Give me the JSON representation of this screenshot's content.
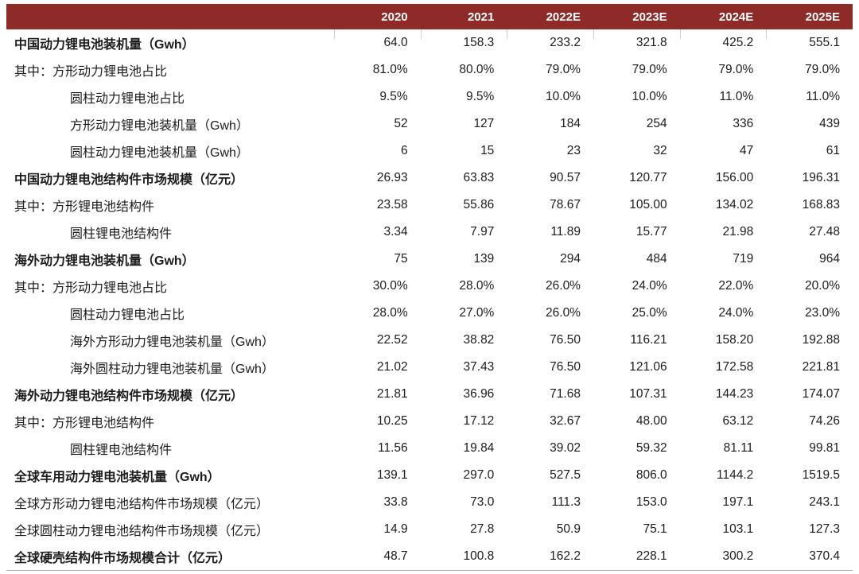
{
  "colors": {
    "header_bg": "#8E2A28",
    "header_text": "#FFFFFF",
    "body_text": "#1C1C1C"
  },
  "table": {
    "columns": [
      "2020",
      "2021",
      "2022E",
      "2023E",
      "2024E",
      "2025E"
    ],
    "rows": [
      {
        "label": "中国动力锂电池装机量（Gwh）",
        "style": "bold",
        "values": [
          "64.0",
          "158.3",
          "233.2",
          "321.8",
          "425.2",
          "555.1"
        ]
      },
      {
        "label": "其中：方形动力锂电池占比",
        "style": "normal",
        "values": [
          "81.0%",
          "80.0%",
          "79.0%",
          "79.0%",
          "79.0%",
          "79.0%"
        ]
      },
      {
        "label": "圆柱动力锂电池占比",
        "style": "indent",
        "values": [
          "9.5%",
          "9.5%",
          "10.0%",
          "10.0%",
          "11.0%",
          "11.0%"
        ]
      },
      {
        "label": "方形动力锂电池装机量（Gwh）",
        "style": "indent",
        "values": [
          "52",
          "127",
          "184",
          "254",
          "336",
          "439"
        ]
      },
      {
        "label": "圆柱动力锂电池装机量（Gwh）",
        "style": "indent",
        "values": [
          "6",
          "15",
          "23",
          "32",
          "47",
          "61"
        ]
      },
      {
        "label": "中国动力锂电池结构件市场规模（亿元）",
        "style": "bold",
        "values": [
          "26.93",
          "63.83",
          "90.57",
          "120.77",
          "156.00",
          "196.31"
        ]
      },
      {
        "label": "其中：方形锂电池结构件",
        "style": "normal",
        "values": [
          "23.58",
          "55.86",
          "78.67",
          "105.00",
          "134.02",
          "168.83"
        ]
      },
      {
        "label": "圆柱锂电池结构件",
        "style": "indent",
        "values": [
          "3.34",
          "7.97",
          "11.89",
          "15.77",
          "21.98",
          "27.48"
        ]
      },
      {
        "label": "海外动力锂电池装机量（Gwh）",
        "style": "bold",
        "values": [
          "75",
          "139",
          "294",
          "484",
          "719",
          "964"
        ]
      },
      {
        "label": "其中：方形动力锂电池占比",
        "style": "normal",
        "values": [
          "30.0%",
          "28.0%",
          "26.0%",
          "24.0%",
          "22.0%",
          "20.0%"
        ]
      },
      {
        "label": "圆柱动力锂电池占比",
        "style": "indent",
        "values": [
          "28.0%",
          "27.0%",
          "26.0%",
          "25.0%",
          "24.0%",
          "23.0%"
        ]
      },
      {
        "label": "海外方形动力锂电池装机量（Gwh）",
        "style": "indent",
        "values": [
          "22.52",
          "38.82",
          "76.50",
          "116.21",
          "158.20",
          "192.88"
        ]
      },
      {
        "label": "海外圆柱动力锂电池装机量（Gwh）",
        "style": "indent",
        "values": [
          "21.02",
          "37.43",
          "76.50",
          "121.06",
          "172.58",
          "221.81"
        ]
      },
      {
        "label": "海外动力锂电池结构件市场规模（亿元）",
        "style": "bold",
        "values": [
          "21.81",
          "36.96",
          "71.68",
          "107.31",
          "144.23",
          "174.07"
        ]
      },
      {
        "label": "其中：方形锂电池结构件",
        "style": "normal",
        "values": [
          "10.25",
          "17.12",
          "32.67",
          "48.00",
          "63.12",
          "74.26"
        ]
      },
      {
        "label": "圆柱锂电池结构件",
        "style": "indent",
        "values": [
          "11.56",
          "19.84",
          "39.02",
          "59.32",
          "81.11",
          "99.81"
        ]
      },
      {
        "label": "全球车用动力锂电池装机量（Gwh）",
        "style": "bold",
        "values": [
          "139.1",
          "297.0",
          "527.5",
          "806.0",
          "1144.2",
          "1519.5"
        ]
      },
      {
        "label": "全球方形动力锂电池结构件市场规模（亿元）",
        "style": "normal",
        "values": [
          "33.8",
          "73.0",
          "111.3",
          "153.0",
          "197.1",
          "243.1"
        ]
      },
      {
        "label": "全球圆柱动力锂电池结构件市场规模（亿元）",
        "style": "normal",
        "values": [
          "14.9",
          "27.8",
          "50.9",
          "75.1",
          "103.1",
          "127.3"
        ]
      },
      {
        "label": "全球硬壳结构件市场规模合计（亿元）",
        "style": "bold",
        "values": [
          "48.7",
          "100.8",
          "162.2",
          "228.1",
          "300.2",
          "370.4"
        ]
      }
    ]
  }
}
